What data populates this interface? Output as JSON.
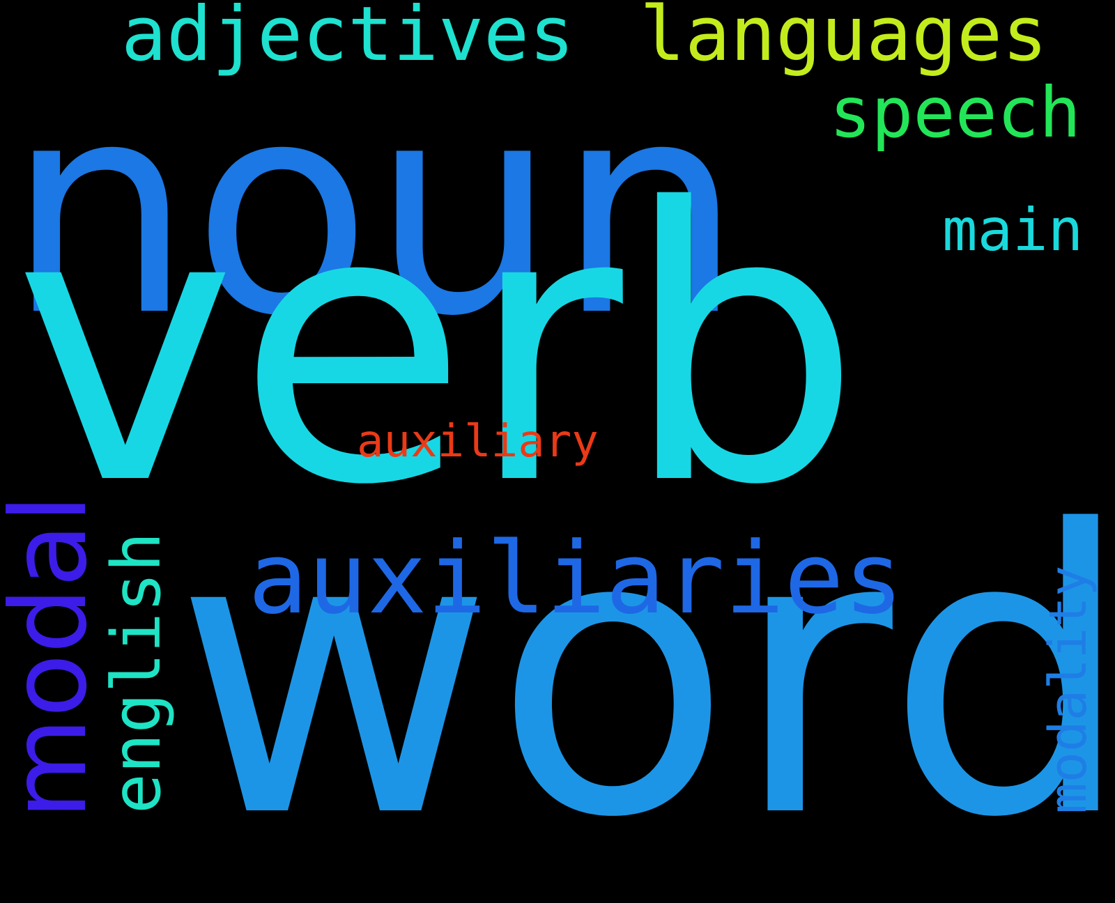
{
  "words": [
    {
      "text": "noun",
      "color": "#1b78e4"
    },
    {
      "text": "verb",
      "color": "#18d7e4"
    },
    {
      "text": "word",
      "color": "#1d95e6"
    },
    {
      "text": "adjectives",
      "color": "#1ee1cf"
    },
    {
      "text": "languages",
      "color": "#c3ec1c"
    },
    {
      "text": "speech",
      "color": "#22e658"
    },
    {
      "text": "main",
      "color": "#1ad9dc"
    },
    {
      "text": "auxiliary",
      "color": "#ea3a17"
    },
    {
      "text": "auxiliaries",
      "color": "#1e68e6"
    },
    {
      "text": "modal",
      "color": "#3c1ce8"
    },
    {
      "text": "english",
      "color": "#1ee3c4"
    },
    {
      "text": "modality",
      "color": "#1e7ee6"
    }
  ]
}
